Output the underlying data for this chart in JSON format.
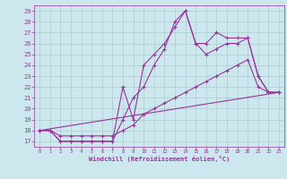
{
  "xlabel": "Windchill (Refroidissement éolien,°C)",
  "background_color": "#cce8ee",
  "grid_color": "#aacccc",
  "line_color": "#993399",
  "xlim": [
    -0.5,
    23.5
  ],
  "ylim": [
    16.5,
    29.5
  ],
  "yticks": [
    17,
    18,
    19,
    20,
    21,
    22,
    23,
    24,
    25,
    26,
    27,
    28,
    29
  ],
  "xticks": [
    0,
    1,
    2,
    3,
    4,
    5,
    6,
    7,
    8,
    9,
    10,
    11,
    12,
    13,
    14,
    15,
    16,
    17,
    18,
    19,
    20,
    21,
    22,
    23
  ],
  "line1_x": [
    0,
    1,
    2,
    3,
    4,
    5,
    6,
    7,
    8,
    9,
    10,
    11,
    12,
    13,
    14,
    15,
    16,
    17,
    18,
    19,
    20,
    21,
    22,
    23
  ],
  "line1_y": [
    18,
    18,
    17,
    17,
    17,
    17,
    17,
    17,
    22,
    19,
    24,
    25,
    26,
    27.5,
    29,
    26,
    26,
    27,
    26.5,
    26.5,
    26.5,
    23,
    21.5,
    21.5
  ],
  "line2_x": [
    0,
    1,
    2,
    3,
    4,
    5,
    6,
    7,
    8,
    9,
    10,
    11,
    12,
    13,
    14,
    15,
    16,
    17,
    18,
    19,
    20,
    21,
    22,
    23
  ],
  "line2_y": [
    18,
    18,
    17,
    17,
    17,
    17,
    17,
    17,
    19,
    21,
    22,
    24,
    25.5,
    28,
    29,
    26,
    25,
    25.5,
    26,
    26,
    26.5,
    23,
    21.5,
    21.5
  ],
  "line3_x": [
    0,
    23
  ],
  "line3_y": [
    18,
    21.5
  ],
  "line4_x": [
    0,
    1,
    2,
    3,
    4,
    5,
    6,
    7,
    8,
    9,
    10,
    11,
    12,
    13,
    14,
    15,
    16,
    17,
    18,
    19,
    20,
    21,
    22,
    23
  ],
  "line4_y": [
    18,
    18,
    17.5,
    17.5,
    17.5,
    17.5,
    17.5,
    17.5,
    18.0,
    18.5,
    19.5,
    20.0,
    20.5,
    21.0,
    21.5,
    22.0,
    22.5,
    23.0,
    23.5,
    24.0,
    24.5,
    22,
    21.5,
    21.5
  ]
}
